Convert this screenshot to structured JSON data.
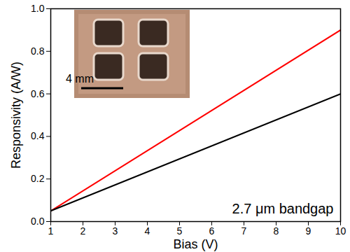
{
  "chart_data": {
    "type": "line",
    "x_label": "Bias (V)",
    "y_label": "Responsivity (A/W)",
    "annotations": [
      "2.7 μm bandgap",
      "4 mm"
    ],
    "x": [
      1,
      10
    ],
    "series": [
      {
        "color": "#ff0000",
        "values": [
          0.05,
          0.9
        ]
      },
      {
        "color": "#000000",
        "values": [
          0.05,
          0.6
        ]
      }
    ],
    "xlim": [
      1,
      10
    ],
    "xticks": [
      1,
      2,
      3,
      4,
      5,
      6,
      7,
      8,
      9,
      10
    ],
    "ylim": [
      0,
      1
    ],
    "yticks": [
      {
        "value": 0,
        "label": "0.0"
      },
      0.2,
      0.4,
      0.6,
      0.8,
      {
        "value": 1,
        "label": "1.0"
      }
    ],
    "grid": false
  }
}
